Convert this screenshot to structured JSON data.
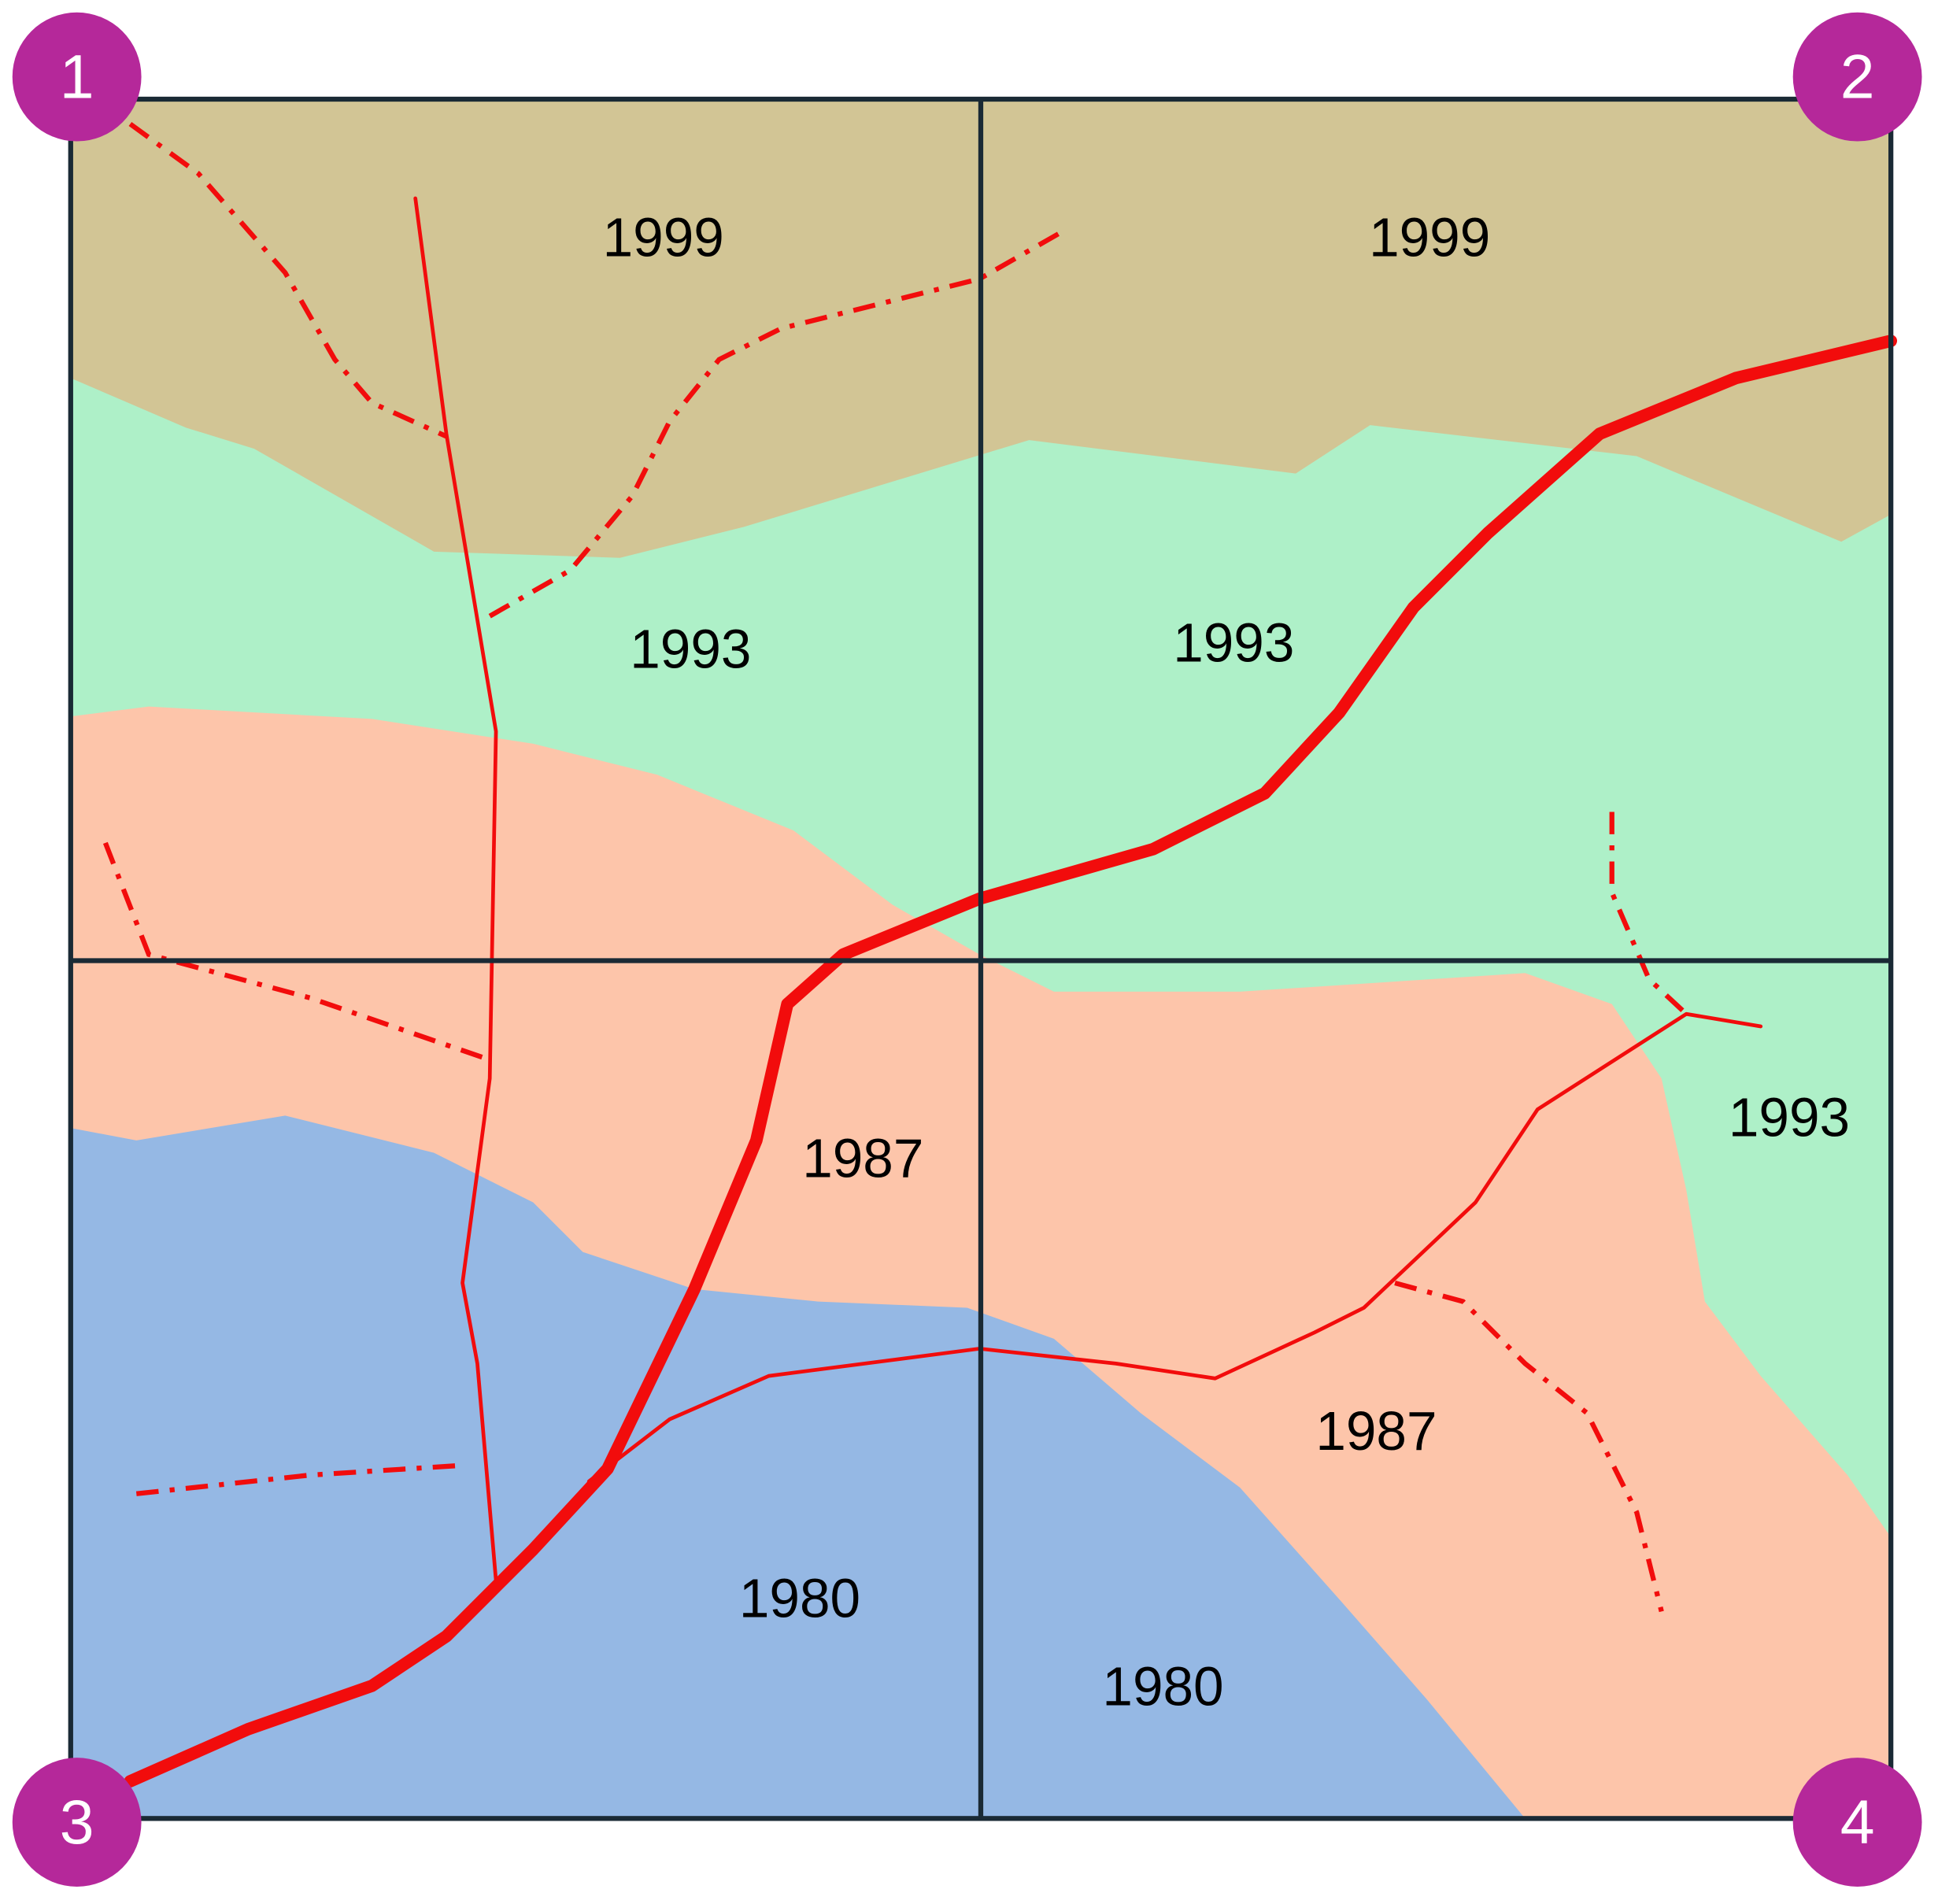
{
  "corners": [
    "1",
    "2",
    "3",
    "4"
  ],
  "regions": [
    {
      "label": "1999"
    },
    {
      "label": "1999"
    },
    {
      "label": "1993"
    },
    {
      "label": "1993"
    },
    {
      "label": "1993"
    },
    {
      "label": "1987"
    },
    {
      "label": "1987"
    },
    {
      "label": "1980"
    },
    {
      "label": "1980"
    }
  ]
}
